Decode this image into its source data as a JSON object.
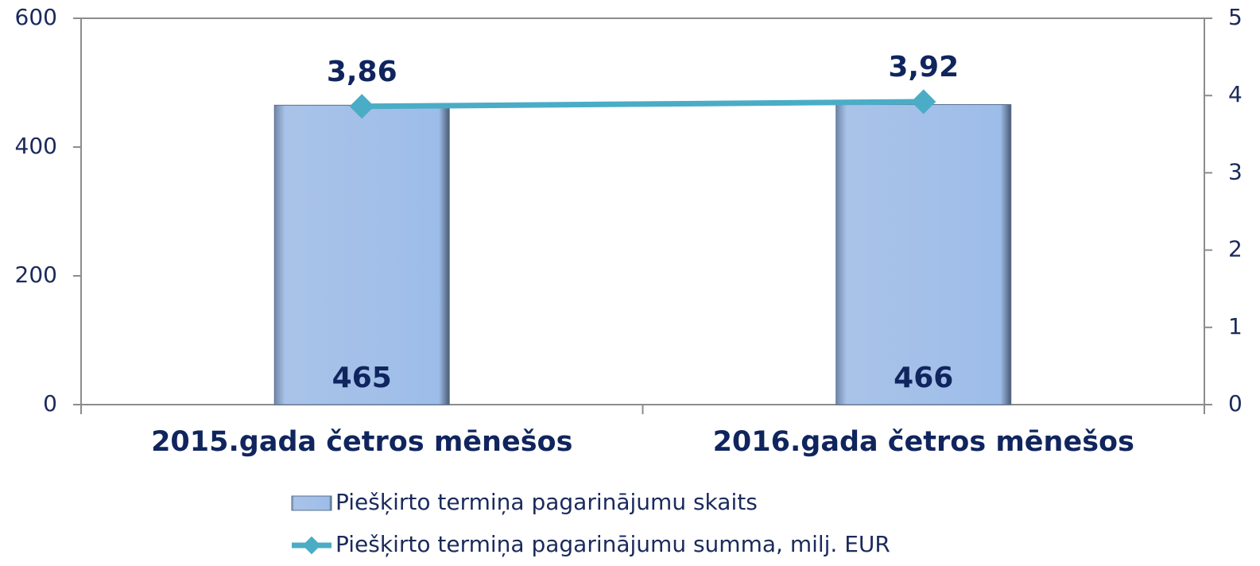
{
  "chart_data": {
    "type": "bar",
    "categories": [
      "2015.gada četros mēnešos",
      "2016.gada četros mēnešos"
    ],
    "series": [
      {
        "name": "Piešķirto termiņa pagarinājumu skaits",
        "type": "bar",
        "color": "#9fbde6",
        "values": [
          465,
          466
        ]
      },
      {
        "name": "Piešķirto termiņa pagarinājumu summa, milj. EUR",
        "type": "line",
        "axis": "y2",
        "color": "#4bacc6",
        "values": [
          3.86,
          3.92
        ],
        "value_labels": [
          "3,86",
          "3,92"
        ]
      }
    ],
    "ylim": [
      0,
      600
    ],
    "yticks": [
      0,
      200,
      400,
      600
    ],
    "y2lim": [
      0,
      5
    ],
    "y2ticks": [
      0,
      1,
      2,
      3,
      4,
      5
    ],
    "legend": "bottom"
  }
}
